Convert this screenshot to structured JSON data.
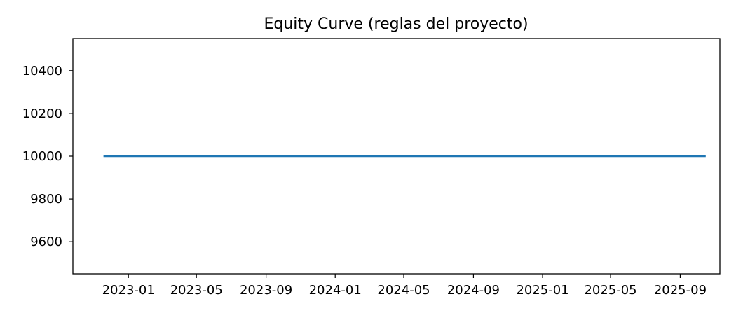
{
  "chart_data": {
    "type": "line",
    "title": "Equity Curve (reglas del proyecto)",
    "xlabel": "",
    "ylabel": "",
    "x_axis": {
      "type": "date",
      "range": [
        "2022-09-25",
        "2025-11-10"
      ],
      "ticks": [
        "2023-01",
        "2023-05",
        "2023-09",
        "2024-01",
        "2024-05",
        "2024-09",
        "2025-01",
        "2025-05",
        "2025-09"
      ],
      "tick_dates": [
        "2023-01-01",
        "2023-05-01",
        "2023-09-01",
        "2024-01-01",
        "2024-05-01",
        "2024-09-01",
        "2025-01-01",
        "2025-05-01",
        "2025-09-01"
      ]
    },
    "y_axis": {
      "range": [
        9450,
        10550
      ],
      "ticks": [
        9600,
        9800,
        10000,
        10200,
        10400
      ]
    },
    "grid": false,
    "series": [
      {
        "color": "#1f77b4",
        "points": [
          {
            "x": "2022-11-18",
            "y": 10000
          },
          {
            "x": "2025-10-16",
            "y": 10000
          }
        ]
      }
    ]
  }
}
